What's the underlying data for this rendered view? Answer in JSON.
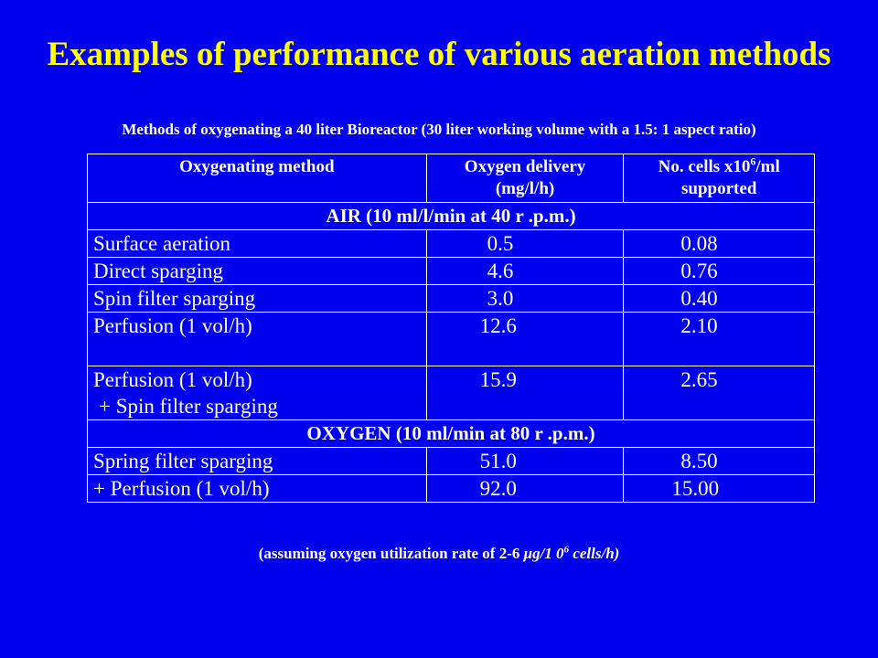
{
  "slide": {
    "title": "Examples of performance of various aeration methods",
    "subtitle": "Methods of oxygenating a 40 liter Bioreactor (30 liter working volume with a 1.5: 1 aspect ratio)"
  },
  "table": {
    "headers": {
      "method": "Oxygenating method",
      "delivery_line1": "Oxygen delivery",
      "delivery_line2": "(mg/l/h)",
      "cells_pre": "No. cells x10",
      "cells_sup": "6",
      "cells_post": "/ml",
      "cells_line2": "supported"
    },
    "air_band": "AIR (10 ml/l/min at 40 r .p.m.)",
    "air_rows": [
      {
        "method": "Surface aeration",
        "delivery": "0.5",
        "cells": "0.08"
      },
      {
        "method": "Direct sparging",
        "delivery": "4.6",
        "cells": "0.76"
      },
      {
        "method": "Spin filter sparging",
        "delivery": "3.0",
        "cells": "0.40"
      },
      {
        "method": "Perfusion (1 vol/h)",
        "delivery": "12.6",
        "cells": "2.10"
      },
      {
        "method": "Perfusion (1 vol/h)",
        "method_line2": "+ Spin filter sparging",
        "delivery": "15.9",
        "cells": "2.65"
      }
    ],
    "oxygen_band": "OXYGEN (10 ml/min at 80 r .p.m.)",
    "oxygen_rows": [
      {
        "method": "Spring filter sparging",
        "delivery": "51.0",
        "cells": "8.50"
      },
      {
        "method": "+ Perfusion (1 vol/h)",
        "delivery": "92.0",
        "cells": "15.00"
      }
    ]
  },
  "footnote": {
    "pre": "(assuming oxygen utilization rate of 2-6 ",
    "unit": "μg/1 0",
    "sup": "6",
    "post": " cells/h)"
  },
  "colors": {
    "background": "#0000ee",
    "title": "#ffff00",
    "text": "#ffffff"
  }
}
